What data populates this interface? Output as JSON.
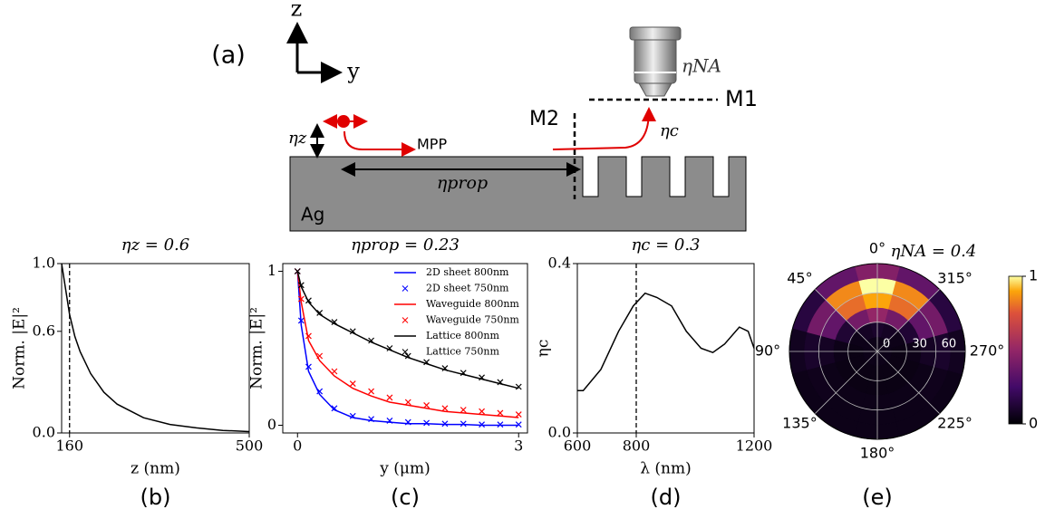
{
  "diagram": {
    "panel_label": "(a)",
    "axis_z": "z",
    "axis_y": "y",
    "eta_na": "ηNA",
    "m1": "M1",
    "m2": "M2",
    "eta_c": "ηc",
    "eta_z": "ηz",
    "mpp": "MPP",
    "eta_prop": "ηprop",
    "ag": "Ag"
  },
  "chart_data": [
    {
      "type": "line",
      "panel_label": "(b)",
      "title": "ηz = 0.6",
      "xlabel": "z (nm)",
      "ylabel": "Norm. |E|²",
      "x": [
        145,
        150,
        155,
        160,
        170,
        180,
        200,
        225,
        250,
        300,
        350,
        400,
        450,
        500
      ],
      "series": [
        {
          "name": "|E|²",
          "color": "#000000",
          "marker": "line",
          "values": [
            1.0,
            0.9,
            0.8,
            0.7,
            0.57,
            0.48,
            0.35,
            0.24,
            0.17,
            0.09,
            0.05,
            0.03,
            0.015,
            0.008
          ]
        }
      ],
      "xlim": [
        145,
        500
      ],
      "xticks": [
        160,
        500
      ],
      "ylim": [
        0,
        1
      ],
      "yticks": [
        {
          "value": 0,
          "label": "0.0"
        },
        {
          "value": 0.6,
          "label": "0.6"
        },
        {
          "value": 1,
          "label": "1.0"
        }
      ],
      "vline": 160
    },
    {
      "type": "line",
      "panel_label": "(c)",
      "title": "ηprop = 0.23",
      "xlabel": "y (μm)",
      "ylabel": "Norm. |E|²",
      "x": [
        0,
        0.05,
        0.15,
        0.3,
        0.5,
        0.75,
        1,
        1.25,
        1.5,
        1.75,
        2,
        2.25,
        2.5,
        2.75,
        3
      ],
      "series": [
        {
          "name": "2D sheet 800nm",
          "color": "#0000ff",
          "marker": "line",
          "values": [
            1,
            0.65,
            0.35,
            0.2,
            0.1,
            0.05,
            0.03,
            0.02,
            0.01,
            0.01,
            0.005,
            0.005,
            0,
            0,
            0
          ]
        },
        {
          "name": "2D sheet 750nm",
          "color": "#0000ff",
          "marker": "x",
          "values": [
            1,
            0.68,
            0.38,
            0.22,
            0.11,
            0.06,
            0.04,
            0.03,
            0.02,
            0.015,
            0.01,
            0.01,
            0.005,
            0.005,
            0.005
          ]
        },
        {
          "name": "Waveguide 800nm",
          "color": "#ff0000",
          "marker": "line",
          "values": [
            1,
            0.8,
            0.55,
            0.42,
            0.32,
            0.24,
            0.19,
            0.15,
            0.13,
            0.11,
            0.09,
            0.08,
            0.07,
            0.06,
            0.05
          ]
        },
        {
          "name": "Waveguide 750nm",
          "color": "#ff0000",
          "marker": "x",
          "values": [
            1,
            0.82,
            0.58,
            0.45,
            0.35,
            0.27,
            0.22,
            0.18,
            0.15,
            0.13,
            0.11,
            0.1,
            0.09,
            0.08,
            0.07
          ]
        },
        {
          "name": "Lattice 800nm",
          "color": "#000000",
          "marker": "line",
          "values": [
            1,
            0.9,
            0.8,
            0.72,
            0.66,
            0.6,
            0.54,
            0.49,
            0.44,
            0.4,
            0.36,
            0.33,
            0.3,
            0.27,
            0.24
          ]
        },
        {
          "name": "Lattice 750nm",
          "color": "#000000",
          "marker": "x",
          "values": [
            1,
            0.91,
            0.81,
            0.73,
            0.67,
            0.61,
            0.55,
            0.5,
            0.45,
            0.41,
            0.37,
            0.34,
            0.31,
            0.28,
            0.25
          ]
        }
      ],
      "xlim": [
        -0.2,
        3.12
      ],
      "xticks": [
        0,
        3
      ],
      "ylim": [
        -0.05,
        1.05
      ],
      "yticks": [
        0,
        1
      ]
    },
    {
      "type": "line",
      "panel_label": "(d)",
      "title": "ηc = 0.3",
      "xlabel": "λ (nm)",
      "ylabel": "ηc",
      "x": [
        600,
        620,
        680,
        740,
        790,
        830,
        870,
        920,
        970,
        1020,
        1060,
        1100,
        1150,
        1180,
        1200
      ],
      "series": [
        {
          "name": "ηc",
          "color": "#000000",
          "marker": "line",
          "values": [
            0.1,
            0.1,
            0.15,
            0.24,
            0.3,
            0.33,
            0.32,
            0.3,
            0.24,
            0.2,
            0.19,
            0.21,
            0.25,
            0.24,
            0.2
          ]
        }
      ],
      "xlim": [
        600,
        1200
      ],
      "xticks": [
        600,
        800,
        1200
      ],
      "ylim": [
        0,
        0.4
      ],
      "yticks": [
        {
          "value": 0,
          "label": "0.0"
        },
        {
          "value": 0.4,
          "label": "0.4"
        }
      ],
      "vline": 800
    },
    {
      "type": "polar_heatmap",
      "panel_label": "(e)",
      "title": "ηNA = 0.4",
      "r_bins": [
        0,
        15,
        30,
        45,
        60,
        75,
        90
      ],
      "phi": [
        0,
        30,
        60,
        90,
        120,
        150,
        180,
        210,
        240,
        270,
        300,
        330
      ],
      "values": [
        [
          0.05,
          0.05,
          0.05,
          0.05,
          0.05,
          0.05,
          0.05,
          0.05,
          0.05,
          0.05,
          0.05,
          0.05
        ],
        [
          0.1,
          0.08,
          0.05,
          0.04,
          0.04,
          0.04,
          0.04,
          0.04,
          0.04,
          0.04,
          0.05,
          0.08
        ],
        [
          0.5,
          0.4,
          0.12,
          0.05,
          0.04,
          0.04,
          0.04,
          0.04,
          0.04,
          0.05,
          0.12,
          0.4
        ],
        [
          0.9,
          0.8,
          0.35,
          0.08,
          0.05,
          0.05,
          0.05,
          0.05,
          0.05,
          0.08,
          0.35,
          0.8
        ],
        [
          1,
          0.85,
          0.4,
          0.1,
          0.06,
          0.05,
          0.05,
          0.05,
          0.06,
          0.1,
          0.4,
          0.85
        ],
        [
          0.45,
          0.35,
          0.15,
          0.07,
          0.05,
          0.05,
          0.05,
          0.05,
          0.05,
          0.07,
          0.15,
          0.35
        ]
      ],
      "rlim": [
        0,
        90
      ],
      "rticks": [
        0,
        30,
        60
      ],
      "angle_ticks": [
        {
          "value": 0,
          "label": "0°"
        },
        {
          "value": 45,
          "label": "45°"
        },
        {
          "value": 90,
          "label": "90°"
        },
        {
          "value": 135,
          "label": "135°"
        },
        {
          "value": 180,
          "label": "180°"
        },
        {
          "value": 225,
          "label": "225°"
        },
        {
          "value": 270,
          "label": "270°"
        },
        {
          "value": 315,
          "label": "315°"
        }
      ],
      "clim": [
        0,
        1
      ],
      "cticks": [
        0,
        1
      ]
    }
  ]
}
